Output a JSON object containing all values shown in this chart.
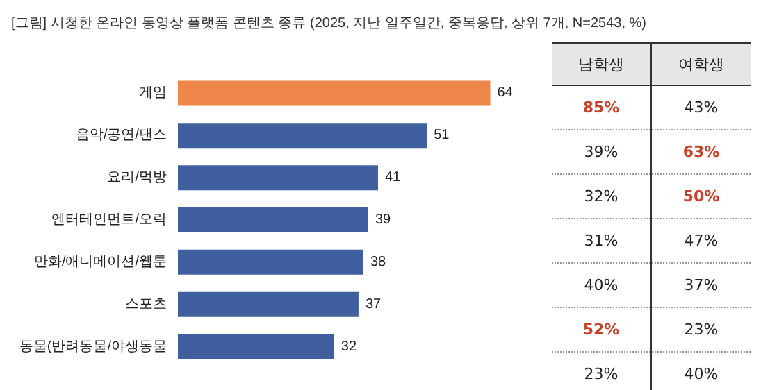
{
  "chart_data": [
    {
      "type": "bar",
      "orientation": "horizontal",
      "title": "[그림] 시청한 온라인 동영상 플랫폼 콘텐츠 종류 (2025, 지난 일주일간, 중복응답, 상위 7개, N=2543, %)",
      "categories": [
        "게임",
        "음악/공연/댄스",
        "요리/먹방",
        "엔터테인먼트/오락",
        "만화/애니메이션/웹툰",
        "스포츠",
        "동물(반려동물/야생동물"
      ],
      "values": [
        64,
        51,
        41,
        39,
        38,
        37,
        32
      ],
      "colors": [
        "#f0874a",
        "#3f5f9f",
        "#3f5f9f",
        "#3f5f9f",
        "#3f5f9f",
        "#3f5f9f",
        "#3f5f9f"
      ],
      "data_labels": true
    },
    {
      "type": "other",
      "categories": [
        "남학생",
        "여학생"
      ],
      "cell_labels": [
        [
          "85%",
          "43%"
        ],
        [
          "39%",
          "63%"
        ],
        [
          "32%",
          "50%"
        ],
        [
          "31%",
          "47%"
        ],
        [
          "40%",
          "37%"
        ],
        [
          "52%",
          "23%"
        ],
        [
          "23%",
          "40%"
        ]
      ],
      "colors": [
        [
          "#c8412a",
          "#222222"
        ],
        [
          "#222222",
          "#c8412a"
        ],
        [
          "#222222",
          "#c8412a"
        ],
        [
          "#222222",
          "#222222"
        ],
        [
          "#222222",
          "#222222"
        ],
        [
          "#c8412a",
          "#222222"
        ],
        [
          "#222222",
          "#222222"
        ]
      ]
    }
  ]
}
